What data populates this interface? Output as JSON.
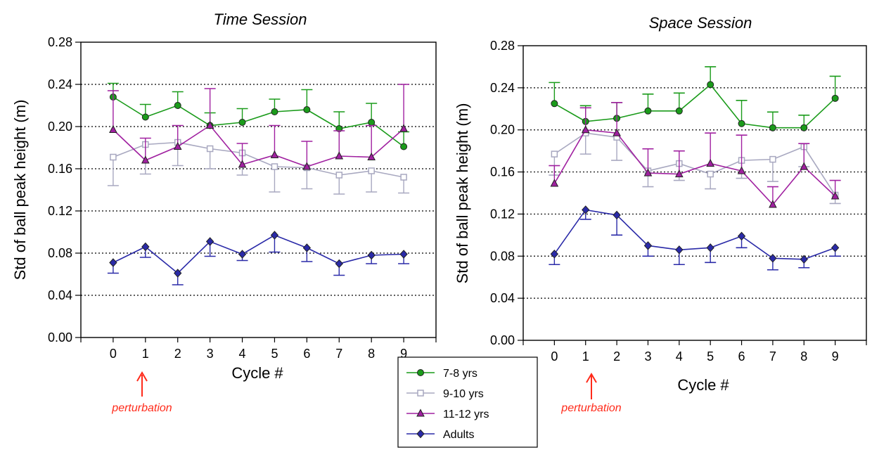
{
  "chart_data": [
    {
      "type": "line",
      "title": "Time Session",
      "xlabel": "Cycle #",
      "ylabel": "Std of ball peak height (m)",
      "xlim": [
        -1,
        10
      ],
      "ylim": [
        0,
        0.28
      ],
      "x_ticks": [
        "0",
        "1",
        "2",
        "3",
        "4",
        "5",
        "6",
        "7",
        "8",
        "9"
      ],
      "y_ticks": [
        "0.00",
        "0.04",
        "0.08",
        "0.12",
        "0.16",
        "0.20",
        "0.24",
        "0.28"
      ],
      "x": [
        0,
        1,
        2,
        3,
        4,
        5,
        6,
        7,
        8,
        9
      ],
      "grid": "horizontal dotted",
      "annotation": {
        "text": "perturbation",
        "x": 1
      },
      "series": [
        {
          "name": "7-8 yrs",
          "color": "#1a9b1a",
          "marker": "circle",
          "values": [
            0.228,
            0.209,
            0.22,
            0.201,
            0.204,
            0.214,
            0.216,
            0.198,
            0.204,
            0.181
          ],
          "errors": [
            0.013,
            0.012,
            0.013,
            0.012,
            0.013,
            0.012,
            0.019,
            0.016,
            0.018,
            0.014
          ]
        },
        {
          "name": "9-10 yrs",
          "color": "#a8a8c0",
          "marker": "square",
          "values": [
            0.171,
            0.183,
            0.185,
            0.179,
            0.175,
            0.162,
            0.161,
            0.154,
            0.158,
            0.152
          ],
          "errors": [
            0.027,
            0.028,
            0.022,
            0.019,
            0.021,
            0.024,
            0.02,
            0.018,
            0.02,
            0.015
          ]
        },
        {
          "name": "11-12 yrs",
          "color": "#a020a0",
          "marker": "triangle",
          "values": [
            0.197,
            0.168,
            0.181,
            0.201,
            0.164,
            0.173,
            0.162,
            0.172,
            0.171,
            0.198
          ],
          "errors": [
            0.037,
            0.021,
            0.02,
            0.035,
            0.02,
            0.028,
            0.024,
            0.024,
            0.03,
            0.042
          ]
        },
        {
          "name": "Adults",
          "color": "#2a2aa8",
          "marker": "diamond",
          "values": [
            0.071,
            0.086,
            0.061,
            0.091,
            0.079,
            0.097,
            0.085,
            0.07,
            0.078,
            0.079
          ],
          "errors": [
            0.01,
            0.01,
            0.011,
            0.014,
            0.006,
            0.016,
            0.013,
            0.011,
            0.008,
            0.009
          ]
        }
      ]
    },
    {
      "type": "line",
      "title": "Space Session",
      "xlabel": "Cycle #",
      "ylabel": "Std of ball peak height (m)",
      "xlim": [
        -1,
        10
      ],
      "ylim": [
        0,
        0.28
      ],
      "x_ticks": [
        "0",
        "1",
        "2",
        "3",
        "4",
        "5",
        "6",
        "7",
        "8",
        "9"
      ],
      "y_ticks": [
        "0.00",
        "0.04",
        "0.08",
        "0.12",
        "0.16",
        "0.20",
        "0.24",
        "0.28"
      ],
      "x": [
        0,
        1,
        2,
        3,
        4,
        5,
        6,
        7,
        8,
        9
      ],
      "grid": "horizontal dotted",
      "annotation": {
        "text": "perturbation",
        "x": 1
      },
      "series": [
        {
          "name": "7-8 yrs",
          "color": "#1a9b1a",
          "marker": "circle",
          "values": [
            0.225,
            0.208,
            0.211,
            0.218,
            0.218,
            0.243,
            0.206,
            0.202,
            0.202,
            0.23
          ],
          "errors": [
            0.02,
            0.015,
            0.015,
            0.016,
            0.017,
            0.017,
            0.022,
            0.015,
            0.012,
            0.021
          ]
        },
        {
          "name": "9-10 yrs",
          "color": "#a8a8c0",
          "marker": "square",
          "values": [
            0.177,
            0.197,
            0.193,
            0.161,
            0.168,
            0.158,
            0.171,
            0.172,
            0.184,
            0.138
          ],
          "errors": [
            0.02,
            0.02,
            0.022,
            0.015,
            0.016,
            0.014,
            0.017,
            0.021,
            0.019,
            0.008
          ]
        },
        {
          "name": "11-12 yrs",
          "color": "#a020a0",
          "marker": "triangle",
          "values": [
            0.149,
            0.2,
            0.197,
            0.159,
            0.158,
            0.168,
            0.161,
            0.129,
            0.165,
            0.137
          ],
          "errors": [
            0.017,
            0.021,
            0.029,
            0.023,
            0.022,
            0.029,
            0.034,
            0.017,
            0.022,
            0.015
          ]
        },
        {
          "name": "Adults",
          "color": "#2a2aa8",
          "marker": "diamond",
          "values": [
            0.082,
            0.124,
            0.119,
            0.09,
            0.086,
            0.088,
            0.099,
            0.078,
            0.077,
            0.088
          ],
          "errors": [
            0.01,
            0.009,
            0.019,
            0.01,
            0.014,
            0.014,
            0.011,
            0.011,
            0.008,
            0.008
          ]
        }
      ]
    }
  ],
  "legend": {
    "placement": "bottom-center",
    "entries": [
      "7-8 yrs",
      "9-10 yrs",
      "11-12 yrs",
      "Adults"
    ]
  }
}
